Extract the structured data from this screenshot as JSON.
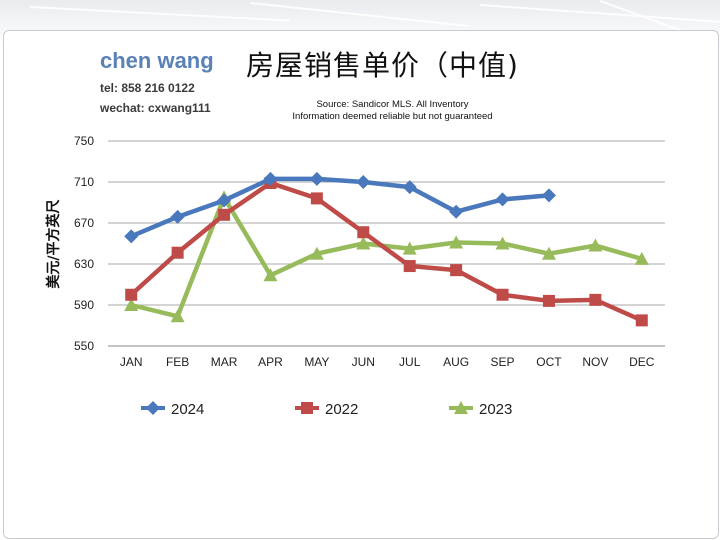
{
  "header": {
    "author": "chen wang",
    "tel": "tel: 858 216 0122",
    "wechat": "wechat: cxwang111",
    "title": "房屋销售单价（中值)",
    "source_line1": "Source: Sandicor MLS. All Inventory",
    "source_line2": "Information deemed reliable but not guaranteed"
  },
  "chart_data": {
    "type": "line",
    "title": "房屋销售单价（中值)",
    "ylabel": "美元/平方英尺",
    "xlabel": "",
    "ylim": [
      550,
      750
    ],
    "yticks": [
      550,
      590,
      630,
      670,
      710,
      750
    ],
    "grid": true,
    "legend_position": "bottom",
    "categories": [
      "JAN",
      "FEB",
      "MAR",
      "APR",
      "MAY",
      "JUN",
      "JUL",
      "AUG",
      "SEP",
      "OCT",
      "NOV",
      "DEC"
    ],
    "series": [
      {
        "name": "2024",
        "color": "#4a78bd",
        "marker": "diamond",
        "values": [
          657,
          676,
          692,
          713,
          713,
          710,
          705,
          681,
          693,
          697,
          null,
          null
        ]
      },
      {
        "name": "2022",
        "color": "#bf4b48",
        "marker": "square",
        "values": [
          600,
          641,
          678,
          709,
          694,
          661,
          628,
          624,
          600,
          594,
          595,
          575
        ]
      },
      {
        "name": "2023",
        "color": "#97bb5b",
        "marker": "triangle",
        "values": [
          590,
          579,
          695,
          619,
          640,
          650,
          645,
          651,
          650,
          640,
          648,
          635
        ]
      }
    ]
  }
}
